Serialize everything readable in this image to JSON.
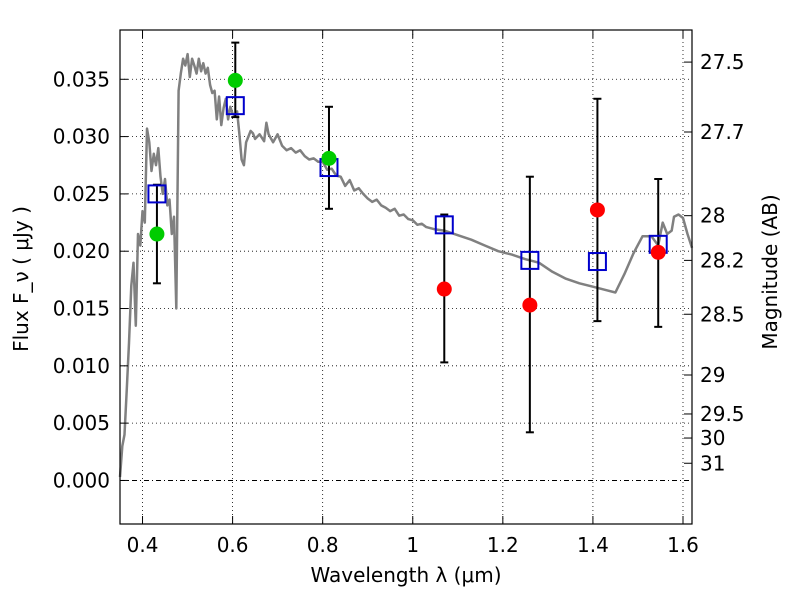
{
  "chart_data": {
    "type": "scatter",
    "title": "",
    "xlabel": "Wavelength  λ (μm)",
    "ylabel": "Flux  F_ν  ( μJy )",
    "ylabel_right": "Magnitude (AB)",
    "xlim": [
      0.35,
      1.62
    ],
    "ylim": [
      -0.0038,
      0.0393
    ],
    "grid": true,
    "x_ticks": [
      0.4,
      0.6,
      0.8,
      1.0,
      1.2,
      1.4,
      1.6
    ],
    "x_tick_labels": [
      "0.4",
      "0.6",
      "0.8",
      "1",
      "1.2",
      "1.4",
      "1.6"
    ],
    "y_ticks": [
      0.0,
      0.005,
      0.01,
      0.015,
      0.02,
      0.025,
      0.03,
      0.035
    ],
    "y_tick_labels": [
      "0.000",
      "0.005",
      "0.010",
      "0.015",
      "0.020",
      "0.025",
      "0.030",
      "0.035"
    ],
    "right_ticks": [
      {
        "label": "27.5",
        "flux": 0.0365
      },
      {
        "label": "27.7",
        "flux": 0.0304
      },
      {
        "label": "28",
        "flux": 0.0231
      },
      {
        "label": "28.2",
        "flux": 0.0192
      },
      {
        "label": "28.5",
        "flux": 0.0145
      },
      {
        "label": "29",
        "flux": 0.0092
      },
      {
        "label": "29.5",
        "flux": 0.0058
      },
      {
        "label": "30",
        "flux": 0.0037
      },
      {
        "label": "31",
        "flux": 0.0015
      }
    ],
    "series": [
      {
        "type": "line",
        "color": "#808080",
        "points": [
          [
            0.35,
            0.0003
          ],
          [
            0.355,
            0.003
          ],
          [
            0.36,
            0.004
          ],
          [
            0.365,
            0.008
          ],
          [
            0.37,
            0.012
          ],
          [
            0.375,
            0.017
          ],
          [
            0.38,
            0.019
          ],
          [
            0.385,
            0.0135
          ],
          [
            0.39,
            0.0215
          ],
          [
            0.395,
            0.0205
          ],
          [
            0.4,
            0.0235
          ],
          [
            0.405,
            0.0225
          ],
          [
            0.41,
            0.0307
          ],
          [
            0.415,
            0.0295
          ],
          [
            0.42,
            0.027
          ],
          [
            0.425,
            0.0285
          ],
          [
            0.43,
            0.0275
          ],
          [
            0.435,
            0.029
          ],
          [
            0.44,
            0.0265
          ],
          [
            0.445,
            0.025
          ],
          [
            0.45,
            0.0263
          ],
          [
            0.455,
            0.024
          ],
          [
            0.46,
            0.0245
          ],
          [
            0.465,
            0.0215
          ],
          [
            0.47,
            0.023
          ],
          [
            0.475,
            0.015
          ],
          [
            0.48,
            0.034
          ],
          [
            0.485,
            0.0355
          ],
          [
            0.49,
            0.0368
          ],
          [
            0.495,
            0.0362
          ],
          [
            0.5,
            0.0372
          ],
          [
            0.505,
            0.0352
          ],
          [
            0.51,
            0.0368
          ],
          [
            0.515,
            0.0362
          ],
          [
            0.52,
            0.0355
          ],
          [
            0.525,
            0.0368
          ],
          [
            0.53,
            0.0357
          ],
          [
            0.535,
            0.0364
          ],
          [
            0.54,
            0.0355
          ],
          [
            0.545,
            0.036
          ],
          [
            0.55,
            0.0345
          ],
          [
            0.555,
            0.0338
          ],
          [
            0.56,
            0.034
          ],
          [
            0.565,
            0.0315
          ],
          [
            0.57,
            0.0335
          ],
          [
            0.575,
            0.031
          ],
          [
            0.58,
            0.0325
          ],
          [
            0.585,
            0.0333
          ],
          [
            0.59,
            0.0315
          ],
          [
            0.595,
            0.0326
          ],
          [
            0.6,
            0.032
          ],
          [
            0.605,
            0.0318
          ],
          [
            0.61,
            0.0322
          ],
          [
            0.615,
            0.0302
          ],
          [
            0.62,
            0.028
          ],
          [
            0.625,
            0.0275
          ],
          [
            0.63,
            0.0295
          ],
          [
            0.635,
            0.03
          ],
          [
            0.64,
            0.0305
          ],
          [
            0.645,
            0.0303
          ],
          [
            0.65,
            0.0298
          ],
          [
            0.66,
            0.0302
          ],
          [
            0.67,
            0.0296
          ],
          [
            0.675,
            0.0312
          ],
          [
            0.68,
            0.0302
          ],
          [
            0.69,
            0.0295
          ],
          [
            0.7,
            0.0302
          ],
          [
            0.71,
            0.0292
          ],
          [
            0.72,
            0.0288
          ],
          [
            0.73,
            0.029
          ],
          [
            0.74,
            0.0286
          ],
          [
            0.75,
            0.0288
          ],
          [
            0.76,
            0.0283
          ],
          [
            0.77,
            0.028
          ],
          [
            0.78,
            0.0281
          ],
          [
            0.79,
            0.0278
          ],
          [
            0.8,
            0.0278
          ],
          [
            0.81,
            0.0271
          ],
          [
            0.82,
            0.0272
          ],
          [
            0.83,
            0.0266
          ],
          [
            0.84,
            0.0265
          ],
          [
            0.85,
            0.0257
          ],
          [
            0.86,
            0.0262
          ],
          [
            0.87,
            0.0253
          ],
          [
            0.88,
            0.0255
          ],
          [
            0.89,
            0.025
          ],
          [
            0.9,
            0.0246
          ],
          [
            0.91,
            0.0243
          ],
          [
            0.92,
            0.0245
          ],
          [
            0.93,
            0.024
          ],
          [
            0.94,
            0.0238
          ],
          [
            0.95,
            0.0235
          ],
          [
            0.96,
            0.0237
          ],
          [
            0.97,
            0.0231
          ],
          [
            0.98,
            0.0232
          ],
          [
            0.99,
            0.0228
          ],
          [
            1.0,
            0.0227
          ],
          [
            1.01,
            0.0223
          ],
          [
            1.02,
            0.0224
          ],
          [
            1.03,
            0.0221
          ],
          [
            1.05,
            0.0219
          ],
          [
            1.07,
            0.0218
          ],
          [
            1.1,
            0.0214
          ],
          [
            1.13,
            0.021
          ],
          [
            1.16,
            0.0205
          ],
          [
            1.19,
            0.02
          ],
          [
            1.22,
            0.0197
          ],
          [
            1.25,
            0.0193
          ],
          [
            1.28,
            0.019
          ],
          [
            1.31,
            0.0182
          ],
          [
            1.34,
            0.0176
          ],
          [
            1.37,
            0.0172
          ],
          [
            1.4,
            0.0169
          ],
          [
            1.43,
            0.0166
          ],
          [
            1.45,
            0.0164
          ],
          [
            1.47,
            0.018
          ],
          [
            1.49,
            0.0198
          ],
          [
            1.51,
            0.0213
          ],
          [
            1.53,
            0.0213
          ],
          [
            1.545,
            0.0205
          ],
          [
            1.555,
            0.0225
          ],
          [
            1.565,
            0.0215
          ],
          [
            1.575,
            0.0218
          ],
          [
            1.58,
            0.023
          ],
          [
            1.59,
            0.0232
          ],
          [
            1.6,
            0.0229
          ],
          [
            1.61,
            0.0215
          ],
          [
            1.62,
            0.0203
          ]
        ]
      },
      {
        "type": "errorbar",
        "color": "#000000",
        "points": [
          {
            "x": 0.432,
            "low": 0.0172,
            "high": 0.0258
          },
          {
            "x": 0.606,
            "low": 0.0317,
            "high": 0.0382
          },
          {
            "x": 0.814,
            "low": 0.0237,
            "high": 0.0326
          },
          {
            "x": 1.07,
            "low": 0.0103,
            "high": 0.0232
          },
          {
            "x": 1.26,
            "low": 0.0042,
            "high": 0.0265
          },
          {
            "x": 1.41,
            "low": 0.0139,
            "high": 0.0333
          },
          {
            "x": 1.545,
            "low": 0.0134,
            "high": 0.0263
          }
        ]
      },
      {
        "type": "open-square",
        "color": "#0000cc",
        "points": [
          [
            0.432,
            0.025
          ],
          [
            0.606,
            0.0327
          ],
          [
            0.814,
            0.0273
          ],
          [
            1.07,
            0.0223
          ],
          [
            1.26,
            0.0192
          ],
          [
            1.41,
            0.0191
          ],
          [
            1.545,
            0.0206
          ]
        ]
      },
      {
        "type": "filled-circle",
        "color": "#00cc00",
        "points": [
          [
            0.432,
            0.0215
          ],
          [
            0.606,
            0.0349
          ],
          [
            0.814,
            0.0281
          ]
        ]
      },
      {
        "type": "filled-circle",
        "color": "#ff0000",
        "points": [
          [
            1.07,
            0.0167
          ],
          [
            1.26,
            0.0153
          ],
          [
            1.41,
            0.0236
          ],
          [
            1.545,
            0.0199
          ]
        ]
      }
    ]
  }
}
